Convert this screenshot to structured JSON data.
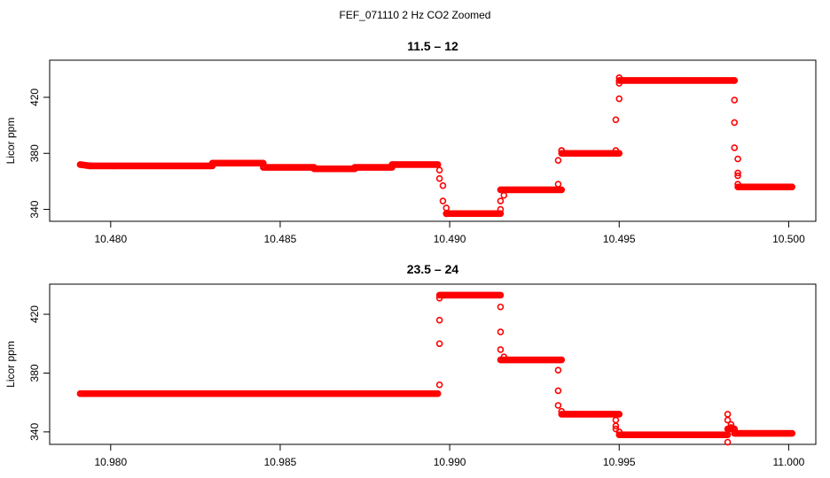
{
  "figure": {
    "title": "FEF_071110  2 Hz CO2 Zoomed",
    "marker_color": "#ff0000"
  },
  "chart_data": [
    {
      "type": "scatter",
      "title": "11.5 – 12",
      "xlabel": "",
      "ylabel": "Licor ppm",
      "xlim": [
        10.4782,
        10.5008
      ],
      "ylim": [
        331.5,
        446.5
      ],
      "xticks": [
        10.48,
        10.485,
        10.49,
        10.495,
        10.5
      ],
      "xtick_labels": [
        "10.480",
        "10.485",
        "10.490",
        "10.495",
        "10.500"
      ],
      "yticks": [
        340,
        380,
        420
      ],
      "ytick_labels": [
        "340",
        "380",
        "420"
      ],
      "grid": false,
      "segments": [
        {
          "x": [
            10.4791,
            10.4794
          ],
          "y": [
            372,
            371
          ]
        },
        {
          "x": [
            10.4794,
            10.483
          ],
          "y": [
            371,
            371
          ]
        },
        {
          "x": [
            10.483,
            10.4845
          ],
          "y": [
            373,
            373
          ]
        },
        {
          "x": [
            10.4845,
            10.486
          ],
          "y": [
            370,
            370
          ]
        },
        {
          "x": [
            10.486,
            10.4872
          ],
          "y": [
            369,
            369
          ]
        },
        {
          "x": [
            10.4872,
            10.4883
          ],
          "y": [
            370,
            370
          ]
        },
        {
          "x": [
            10.4883,
            10.48965
          ],
          "y": [
            372,
            372
          ]
        },
        {
          "x": [
            10.4899,
            10.4915
          ],
          "y": [
            337,
            337
          ]
        },
        {
          "x": [
            10.4915,
            10.4933
          ],
          "y": [
            354,
            354
          ]
        },
        {
          "x": [
            10.4933,
            10.495
          ],
          "y": [
            380,
            380
          ]
        },
        {
          "x": [
            10.495,
            10.4984
          ],
          "y": [
            432,
            432
          ]
        },
        {
          "x": [
            10.4985,
            10.5001
          ],
          "y": [
            356,
            356
          ]
        }
      ],
      "transition_points": {
        "x": [
          10.4897,
          10.4897,
          10.4898,
          10.4898,
          10.4899,
          10.4899,
          10.4915,
          10.4915,
          10.4916,
          10.4932,
          10.4932,
          10.4933,
          10.4933,
          10.4949,
          10.4949,
          10.495,
          10.495,
          10.495,
          10.4984,
          10.4984,
          10.4984,
          10.4984,
          10.4985,
          10.4985,
          10.4985,
          10.4985
        ],
        "y": [
          368,
          362,
          357,
          346,
          341,
          337,
          340,
          346,
          350,
          358,
          375,
          382,
          382,
          382,
          404,
          419,
          434,
          430,
          432,
          418,
          402,
          384,
          376,
          366,
          364,
          358
        ]
      }
    },
    {
      "type": "scatter",
      "title": "23.5 – 24",
      "xlabel": "",
      "ylabel": "Licor ppm",
      "xlim": [
        10.9782,
        11.0008
      ],
      "ylim": [
        331.5,
        440.5
      ],
      "xticks": [
        10.98,
        10.985,
        10.99,
        10.995,
        11.0
      ],
      "xtick_labels": [
        "10.980",
        "10.985",
        "10.990",
        "10.995",
        "11.000"
      ],
      "yticks": [
        340,
        380,
        420
      ],
      "ytick_labels": [
        "340",
        "380",
        "420"
      ],
      "grid": false,
      "segments": [
        {
          "x": [
            10.9791,
            10.98965
          ],
          "y": [
            366,
            366
          ]
        },
        {
          "x": [
            10.9897,
            10.9915
          ],
          "y": [
            433,
            433
          ]
        },
        {
          "x": [
            10.9915,
            10.9933
          ],
          "y": [
            389,
            389
          ]
        },
        {
          "x": [
            10.9933,
            10.995
          ],
          "y": [
            352,
            352
          ]
        },
        {
          "x": [
            10.995,
            10.9982
          ],
          "y": [
            338,
            338
          ]
        },
        {
          "x": [
            10.9982,
            10.9984
          ],
          "y": [
            342,
            342
          ]
        },
        {
          "x": [
            10.9984,
            11.0001
          ],
          "y": [
            339,
            339
          ]
        }
      ],
      "transition_points": {
        "x": [
          10.9897,
          10.9897,
          10.9897,
          10.9897,
          10.9915,
          10.9915,
          10.9915,
          10.9916,
          10.9932,
          10.9932,
          10.9932,
          10.9933,
          10.9949,
          10.9949,
          10.9949,
          10.995,
          10.9982,
          10.9982,
          10.9982,
          10.9983,
          10.9983
        ],
        "y": [
          372,
          400,
          416,
          431,
          425,
          408,
          396,
          391,
          382,
          368,
          358,
          354,
          348,
          344,
          342,
          340,
          333,
          348,
          352,
          345,
          343
        ]
      }
    }
  ]
}
